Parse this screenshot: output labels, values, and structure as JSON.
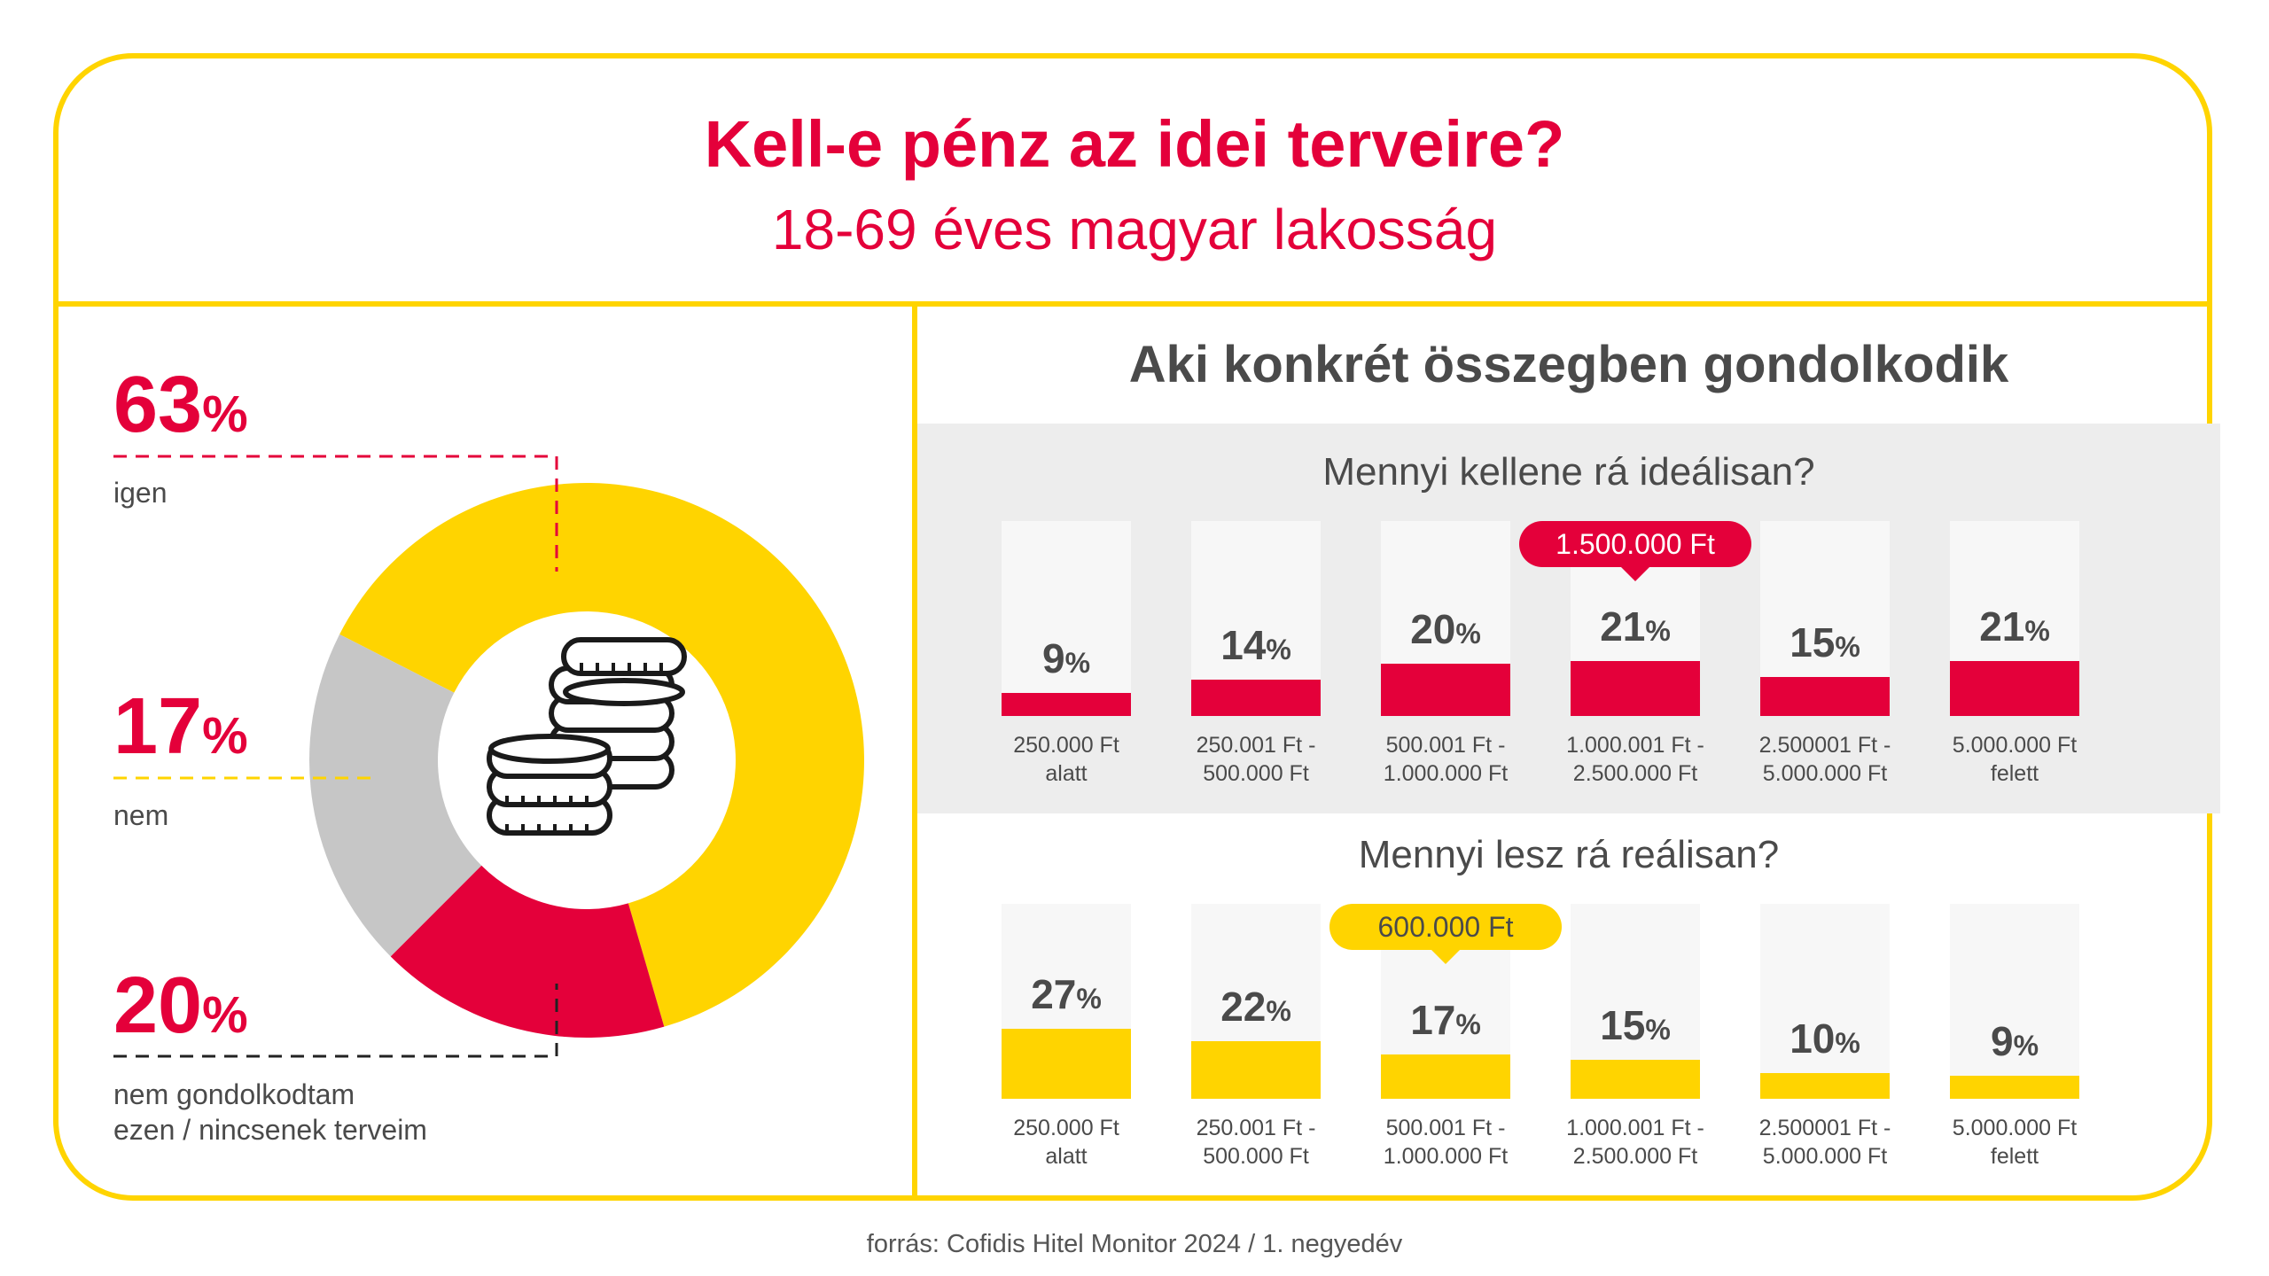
{
  "header": {
    "title": "Kell-e pénz az idei terveire?",
    "subtitle": "18-69 éves magyar lakosság"
  },
  "colors": {
    "accent_red": "#E4003A",
    "accent_yellow": "#FFD400",
    "gray": "#C6C6C6",
    "text": "#4a4a4a"
  },
  "chart_data": [
    {
      "type": "pie",
      "donut": true,
      "center_icon": "coins-icon",
      "slices": [
        {
          "label": "igen",
          "value": 63,
          "display_value": "63",
          "color": "#FFD400"
        },
        {
          "label": "nem",
          "value": 17,
          "display_value": "17",
          "color": "#E4003A"
        },
        {
          "label": "nem gondolkodtam ezen / nincsenek terveim",
          "label_lines": [
            "nem gondolkodtam",
            "ezen / nincsenek terveim"
          ],
          "value": 20,
          "display_value": "20",
          "color": "#C6C6C6"
        }
      ]
    },
    {
      "type": "bar",
      "title": "Mennyi kellene rá ideálisan?",
      "categories": [
        [
          "250.000 Ft",
          "alatt"
        ],
        [
          "250.001 Ft -",
          "500.000 Ft"
        ],
        [
          "500.001 Ft -",
          "1.000.000 Ft"
        ],
        [
          "1.000.001 Ft -",
          "2.500.000 Ft"
        ],
        [
          "2.500001 Ft -",
          "5.000.000 Ft"
        ],
        [
          "5.000.000 Ft",
          "felett"
        ]
      ],
      "values": [
        9,
        14,
        20,
        21,
        15,
        21
      ],
      "highlight": {
        "index": 3,
        "text": "1.500.000 Ft"
      },
      "color": "#E4003A"
    },
    {
      "type": "bar",
      "title": "Mennyi lesz rá reálisan?",
      "categories": [
        [
          "250.000 Ft",
          "alatt"
        ],
        [
          "250.001 Ft -",
          "500.000 Ft"
        ],
        [
          "500.001 Ft -",
          "1.000.000 Ft"
        ],
        [
          "1.000.001 Ft -",
          "2.500.000 Ft"
        ],
        [
          "2.500001 Ft -",
          "5.000.000 Ft"
        ],
        [
          "5.000.000 Ft",
          "felett"
        ]
      ],
      "values": [
        27,
        22,
        17,
        15,
        10,
        9
      ],
      "highlight": {
        "index": 2,
        "text": "600.000 Ft"
      },
      "color": "#FFD400"
    }
  ],
  "right_panel": {
    "title": "Aki konkrét összegben gondolkodik"
  },
  "percent_sign": "%",
  "footer": {
    "source": "forrás: Cofidis Hitel Monitor 2024 / 1. negyedév"
  }
}
